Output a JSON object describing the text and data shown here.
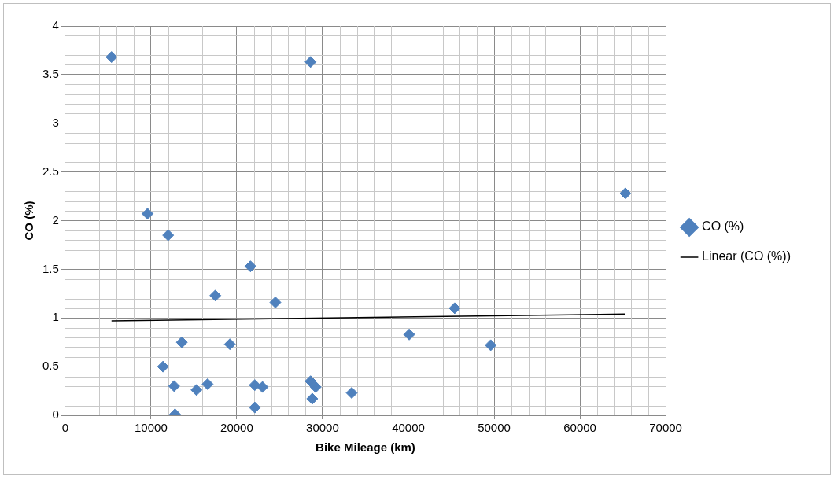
{
  "chart_data": {
    "type": "scatter",
    "xlabel": "Bike Mileage (km)",
    "ylabel": "CO (%)",
    "xlim": [
      0,
      70000
    ],
    "xticks": [
      0,
      10000,
      20000,
      30000,
      40000,
      50000,
      60000,
      70000
    ],
    "ylim": [
      0,
      4
    ],
    "yticks": [
      0,
      0.5,
      1,
      1.5,
      2,
      2.5,
      3,
      3.5,
      4
    ],
    "grid": true,
    "legend": "right",
    "marker": "diamond",
    "series": [
      {
        "name": "CO (%)",
        "color": "#4f81bd",
        "x": [
          5400,
          28600,
          9600,
          12000,
          21600,
          17500,
          24500,
          45400,
          65300,
          40100,
          49600,
          13600,
          19200,
          11400,
          12700,
          15300,
          16600,
          22100,
          23000,
          28600,
          29200,
          28800,
          33400,
          22100,
          12800
        ],
        "values": [
          3.68,
          3.63,
          2.07,
          1.85,
          1.53,
          1.23,
          1.16,
          1.1,
          2.28,
          0.83,
          0.72,
          0.75,
          0.73,
          0.5,
          0.3,
          0.26,
          0.32,
          0.31,
          0.29,
          0.35,
          0.29,
          0.17,
          0.23,
          0.08,
          0.01
        ]
      },
      {
        "name": "Linear (CO (%))",
        "type": "line",
        "color": "#000000",
        "marker": "none",
        "x": [
          5400,
          65300
        ],
        "values": [
          0.97,
          1.04
        ]
      }
    ]
  }
}
